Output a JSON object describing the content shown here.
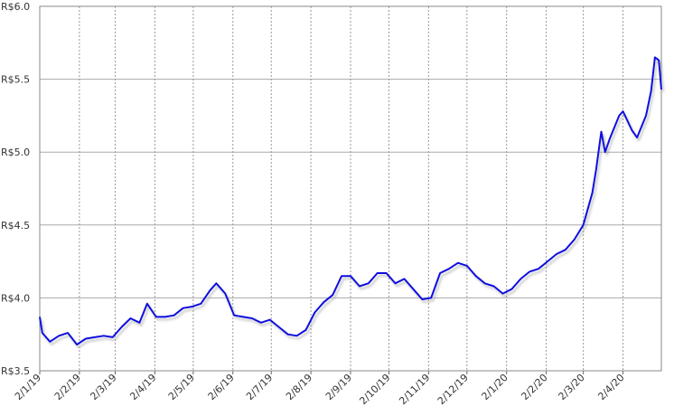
{
  "chart_data": {
    "type": "line",
    "color": "#1010e0",
    "grid": true,
    "x": [
      "2019-01-02",
      "2019-01-04",
      "2019-01-10",
      "2019-01-17",
      "2019-01-24",
      "2019-01-31",
      "2019-02-07",
      "2019-02-14",
      "2019-02-21",
      "2019-02-28",
      "2019-03-07",
      "2019-03-14",
      "2019-03-21",
      "2019-03-27",
      "2019-04-03",
      "2019-04-10",
      "2019-04-17",
      "2019-04-24",
      "2019-05-01",
      "2019-05-08",
      "2019-05-15",
      "2019-05-20",
      "2019-05-27",
      "2019-06-03",
      "2019-06-10",
      "2019-06-17",
      "2019-06-24",
      "2019-07-01",
      "2019-07-08",
      "2019-07-15",
      "2019-07-22",
      "2019-07-29",
      "2019-08-05",
      "2019-08-12",
      "2019-08-19",
      "2019-08-26",
      "2019-09-02",
      "2019-09-09",
      "2019-09-16",
      "2019-09-23",
      "2019-09-30",
      "2019-10-07",
      "2019-10-14",
      "2019-10-21",
      "2019-10-28",
      "2019-11-04",
      "2019-11-11",
      "2019-11-18",
      "2019-11-25",
      "2019-12-02",
      "2019-12-09",
      "2019-12-16",
      "2019-12-23",
      "2019-12-30",
      "2020-01-06",
      "2020-01-13",
      "2020-01-20",
      "2020-01-27",
      "2020-02-03",
      "2020-02-10",
      "2020-02-17",
      "2020-02-24",
      "2020-03-02",
      "2020-03-09",
      "2020-03-12",
      "2020-03-16",
      "2020-03-19",
      "2020-03-23",
      "2020-03-30",
      "2020-04-02",
      "2020-04-09",
      "2020-04-13",
      "2020-04-20",
      "2020-04-24",
      "2020-04-27",
      "2020-04-30",
      "2020-05-02"
    ],
    "values": [
      3.87,
      3.76,
      3.7,
      3.74,
      3.76,
      3.68,
      3.72,
      3.73,
      3.74,
      3.73,
      3.8,
      3.86,
      3.83,
      3.96,
      3.87,
      3.87,
      3.88,
      3.93,
      3.94,
      3.96,
      4.05,
      4.1,
      4.03,
      3.88,
      3.87,
      3.86,
      3.83,
      3.85,
      3.8,
      3.75,
      3.74,
      3.78,
      3.9,
      3.97,
      4.02,
      4.15,
      4.15,
      4.08,
      4.1,
      4.17,
      4.17,
      4.1,
      4.13,
      4.06,
      3.99,
      4.0,
      4.17,
      4.2,
      4.24,
      4.22,
      4.15,
      4.1,
      4.08,
      4.03,
      4.06,
      4.13,
      4.18,
      4.2,
      4.25,
      4.3,
      4.33,
      4.4,
      4.5,
      4.72,
      4.88,
      5.14,
      5.0,
      5.1,
      5.25,
      5.28,
      5.15,
      5.1,
      5.25,
      5.42,
      5.65,
      5.63,
      5.43
    ],
    "xlim": [
      "2019-01-02",
      "2020-05-02"
    ],
    "xticks": [
      {
        "value": "2019-01-02",
        "label": "2/1/19"
      },
      {
        "value": "2019-02-02",
        "label": "2/2/19"
      },
      {
        "value": "2019-03-02",
        "label": "2/3/19"
      },
      {
        "value": "2019-04-02",
        "label": "2/4/19"
      },
      {
        "value": "2019-05-02",
        "label": "2/5/19"
      },
      {
        "value": "2019-06-02",
        "label": "2/6/19"
      },
      {
        "value": "2019-07-02",
        "label": "2/7/19"
      },
      {
        "value": "2019-08-02",
        "label": "2/8/19"
      },
      {
        "value": "2019-09-02",
        "label": "2/9/19"
      },
      {
        "value": "2019-10-02",
        "label": "2/10/19"
      },
      {
        "value": "2019-11-02",
        "label": "2/11/19"
      },
      {
        "value": "2019-12-02",
        "label": "2/12/19"
      },
      {
        "value": "2020-01-02",
        "label": "2/1/20"
      },
      {
        "value": "2020-02-02",
        "label": "2/2/20"
      },
      {
        "value": "2020-03-02",
        "label": "2/3/20"
      },
      {
        "value": "2020-04-02",
        "label": "2/4/20"
      }
    ],
    "ylim": [
      3.5,
      6.0
    ],
    "yticks": [
      {
        "value": 3.5,
        "label": "R$3.5"
      },
      {
        "value": 4.0,
        "label": "R$4.0"
      },
      {
        "value": 4.5,
        "label": "R$4.5"
      },
      {
        "value": 5.0,
        "label": "R$5.0"
      },
      {
        "value": 5.5,
        "label": "R$5.5"
      },
      {
        "value": 6.0,
        "label": "R$6.0"
      }
    ]
  }
}
